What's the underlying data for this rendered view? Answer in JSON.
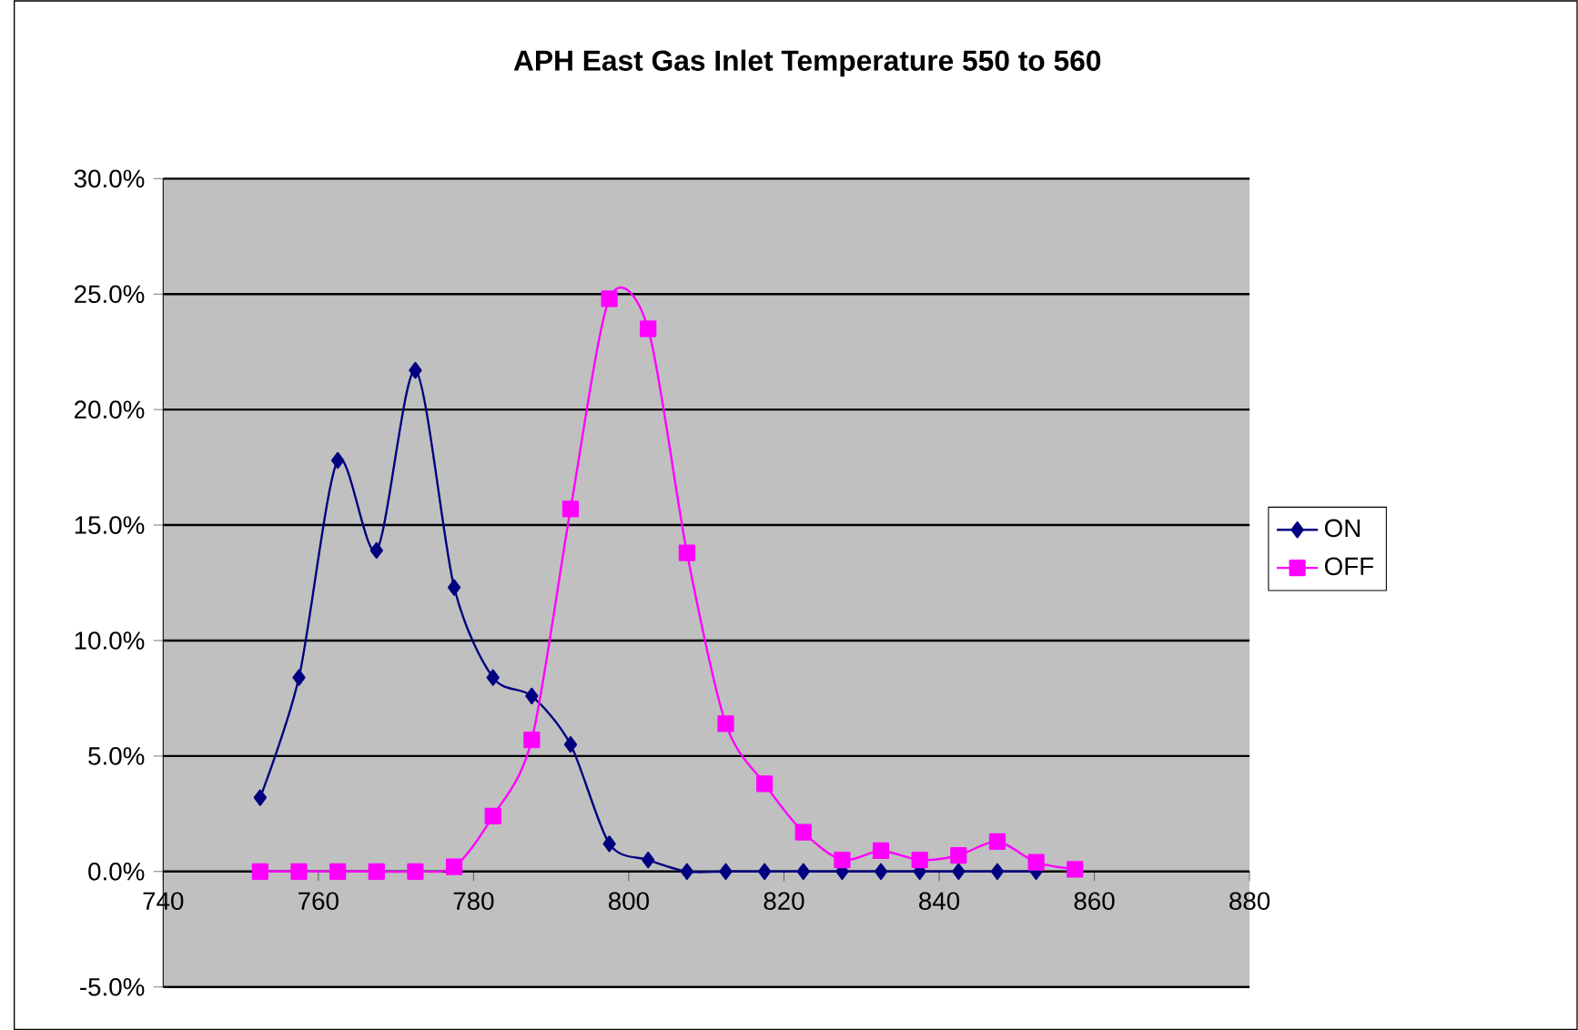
{
  "chart_data": {
    "type": "line",
    "title": "APH East Gas Inlet Temperature 550 to 560",
    "xlim": [
      740,
      880
    ],
    "xticks": [
      740,
      760,
      780,
      800,
      820,
      840,
      860,
      880
    ],
    "ylim": [
      -5,
      30
    ],
    "yticks": [
      {
        "value": -5,
        "label": "-5.0%"
      },
      {
        "value": 0,
        "label": "0.0%"
      },
      {
        "value": 5,
        "label": "5.0%"
      },
      {
        "value": 10,
        "label": "10.0%"
      },
      {
        "value": 15,
        "label": "15.0%"
      },
      {
        "value": 20,
        "label": "20.0%"
      },
      {
        "value": 25,
        "label": "25.0%"
      },
      {
        "value": 30,
        "label": "30.0%"
      }
    ],
    "grid": "y",
    "legend": "right",
    "series": [
      {
        "name": "ON",
        "color": "#000080",
        "marker": "diamond",
        "x": [
          752.5,
          757.5,
          762.5,
          767.5,
          772.5,
          777.5,
          782.5,
          787.5,
          792.5,
          797.5,
          802.5,
          807.5,
          812.5,
          817.5,
          822.5,
          827.5,
          832.5,
          837.5,
          842.5,
          847.5,
          852.5
        ],
        "values": [
          3.2,
          8.4,
          17.8,
          13.9,
          21.7,
          12.3,
          8.4,
          7.6,
          5.5,
          1.2,
          0.5,
          0,
          0,
          0,
          0,
          0,
          0,
          0,
          0,
          0,
          0
        ]
      },
      {
        "name": "OFF",
        "color": "#ff00ff",
        "marker": "square",
        "x": [
          752.5,
          757.5,
          762.5,
          767.5,
          772.5,
          777.5,
          782.5,
          787.5,
          792.5,
          797.5,
          802.5,
          807.5,
          812.5,
          817.5,
          822.5,
          827.5,
          832.5,
          837.5,
          842.5,
          847.5,
          852.5,
          857.5
        ],
        "values": [
          0,
          0,
          0,
          0,
          0,
          0.2,
          2.4,
          5.7,
          15.7,
          24.8,
          23.5,
          13.8,
          6.4,
          3.8,
          1.7,
          0.5,
          0.9,
          0.5,
          0.7,
          1.3,
          0.4,
          0.1
        ]
      }
    ]
  }
}
